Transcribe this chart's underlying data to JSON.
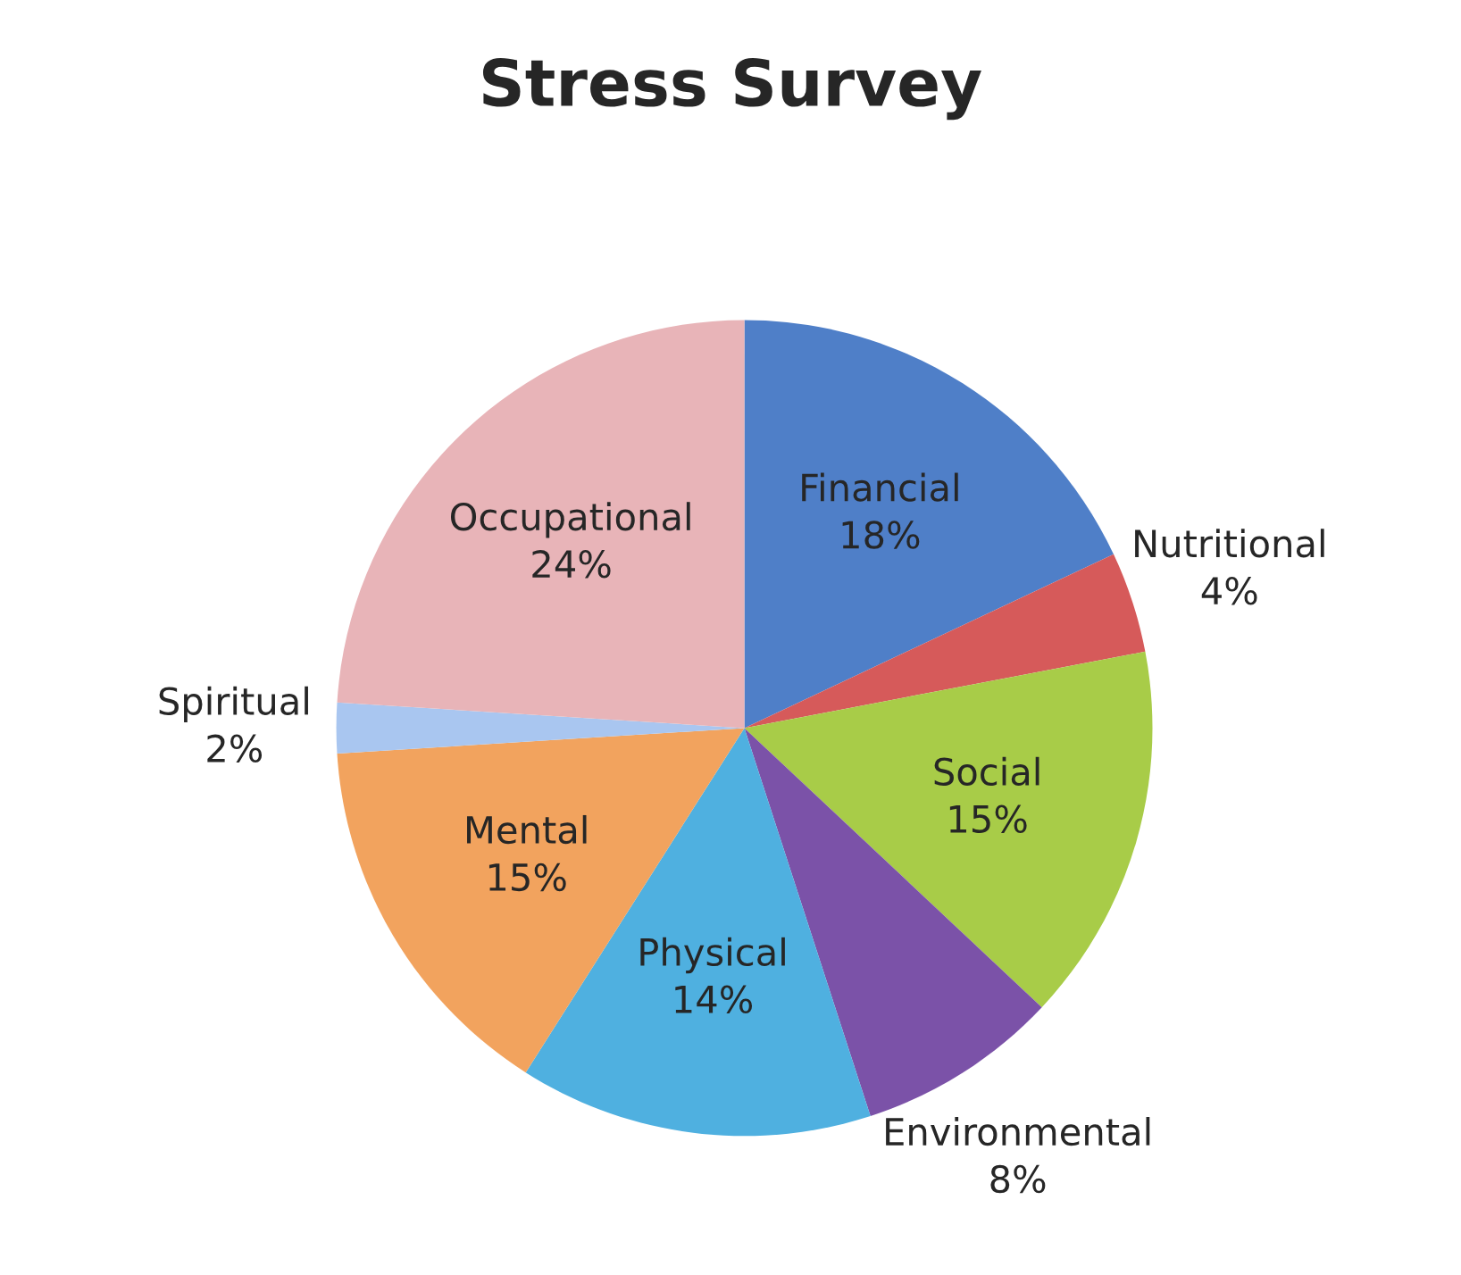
{
  "chart_data": {
    "type": "pie",
    "title": "Stress Survey",
    "categories": [
      "Financial",
      "Nutritional",
      "Social",
      "Environmental",
      "Physical",
      "Mental",
      "Spiritual",
      "Occupational"
    ],
    "values": [
      18,
      4,
      15,
      8,
      14,
      15,
      2,
      24
    ],
    "colors": [
      "#4f7fc8",
      "#d65a5a",
      "#a8cc48",
      "#7b52a8",
      "#4fb0e0",
      "#f2a35e",
      "#a9c6f0",
      "#e8b4b8"
    ],
    "value_labels": [
      "18%",
      "4%",
      "15%",
      "8%",
      "14%",
      "15%",
      "2%",
      "24%"
    ]
  }
}
